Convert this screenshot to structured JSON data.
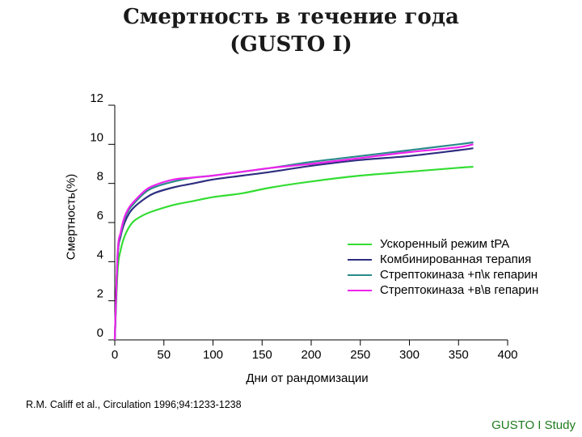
{
  "chart_data": {
    "type": "line",
    "title": [
      "Смертность в течение года",
      "(GUSTO I)"
    ],
    "xlabel": "Дни от рандомизации",
    "ylabel": "Смертность(%)",
    "xlim": [
      0,
      400
    ],
    "ylim": [
      0,
      12
    ],
    "xticks": [
      0,
      50,
      100,
      150,
      200,
      250,
      300,
      350,
      400
    ],
    "yticks": [
      0,
      2,
      4,
      6,
      8,
      10,
      12
    ],
    "grid": false,
    "legend_position": "right",
    "series": [
      {
        "name": "Ускоренный режим tPA",
        "color": "#33dd33",
        "x": [
          0,
          3,
          6,
          10,
          15,
          20,
          30,
          40,
          60,
          80,
          100,
          130,
          160,
          200,
          250,
          300,
          350,
          365
        ],
        "y": [
          0,
          3.6,
          4.6,
          5.3,
          5.8,
          6.1,
          6.4,
          6.6,
          6.9,
          7.1,
          7.3,
          7.5,
          7.8,
          8.1,
          8.4,
          8.6,
          8.8,
          8.85
        ]
      },
      {
        "name": "Комбинированная терапия",
        "color": "#2e2e80",
        "x": [
          0,
          3,
          6,
          10,
          15,
          20,
          30,
          40,
          60,
          80,
          100,
          130,
          160,
          200,
          250,
          300,
          350,
          365
        ],
        "y": [
          0,
          4.3,
          5.3,
          6.0,
          6.5,
          6.8,
          7.2,
          7.5,
          7.8,
          8.0,
          8.2,
          8.4,
          8.6,
          8.9,
          9.2,
          9.4,
          9.7,
          9.8
        ]
      },
      {
        "name": "Стрептокиназа +п\\к гепарин",
        "color": "#2a8a8a",
        "x": [
          0,
          3,
          6,
          10,
          15,
          20,
          30,
          40,
          60,
          80,
          100,
          130,
          160,
          200,
          250,
          300,
          350,
          365
        ],
        "y": [
          0,
          4.4,
          5.4,
          6.2,
          6.7,
          7.0,
          7.5,
          7.8,
          8.1,
          8.3,
          8.4,
          8.6,
          8.8,
          9.1,
          9.4,
          9.7,
          10.0,
          10.1
        ]
      },
      {
        "name": "Стрептокиназа +в\\в гепарин",
        "color": "#ee22ee",
        "x": [
          0,
          3,
          6,
          10,
          15,
          20,
          30,
          40,
          60,
          80,
          100,
          130,
          160,
          200,
          250,
          300,
          350,
          365
        ],
        "y": [
          0,
          4.5,
          5.5,
          6.3,
          6.8,
          7.1,
          7.6,
          7.9,
          8.2,
          8.3,
          8.4,
          8.6,
          8.8,
          9.0,
          9.3,
          9.6,
          9.85,
          10.0
        ]
      }
    ]
  },
  "citation": "R.M. Califf et al., Circulation 1996;94:1233-1238",
  "footer_tag": "GUSTO I Study",
  "colors": {
    "footer_tag": "#1f7a1f",
    "axis": "#000000"
  }
}
